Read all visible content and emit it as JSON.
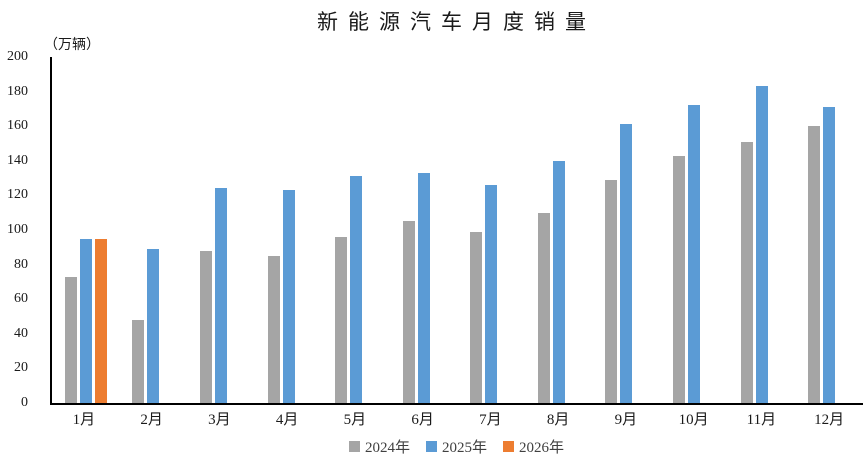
{
  "chart_data": {
    "type": "bar",
    "title": "新能源汽车月度销量",
    "ylabel": "（万辆）",
    "xlabel": "",
    "categories": [
      "1月",
      "2月",
      "3月",
      "4月",
      "5月",
      "6月",
      "7月",
      "8月",
      "9月",
      "10月",
      "11月",
      "12月"
    ],
    "series": [
      {
        "name": "2024年",
        "color": "#A5A5A5",
        "values": [
          73,
          48,
          88,
          85,
          96,
          105,
          99,
          110,
          129,
          143,
          151,
          160
        ]
      },
      {
        "name": "2025年",
        "color": "#5B9BD5",
        "values": [
          95,
          89,
          124,
          123,
          131,
          133,
          126,
          140,
          161,
          172,
          183,
          171
        ]
      },
      {
        "name": "2026年",
        "color": "#ED7D31",
        "values": [
          95,
          null,
          null,
          null,
          null,
          null,
          null,
          null,
          null,
          null,
          null,
          null
        ]
      }
    ],
    "ylim": [
      0,
      200
    ],
    "ytick_step": 20,
    "yticks": [
      0,
      20,
      40,
      60,
      80,
      100,
      120,
      140,
      160,
      180,
      200
    ],
    "grid": false,
    "legend_position": "bottom",
    "axis_color": "#000000"
  }
}
